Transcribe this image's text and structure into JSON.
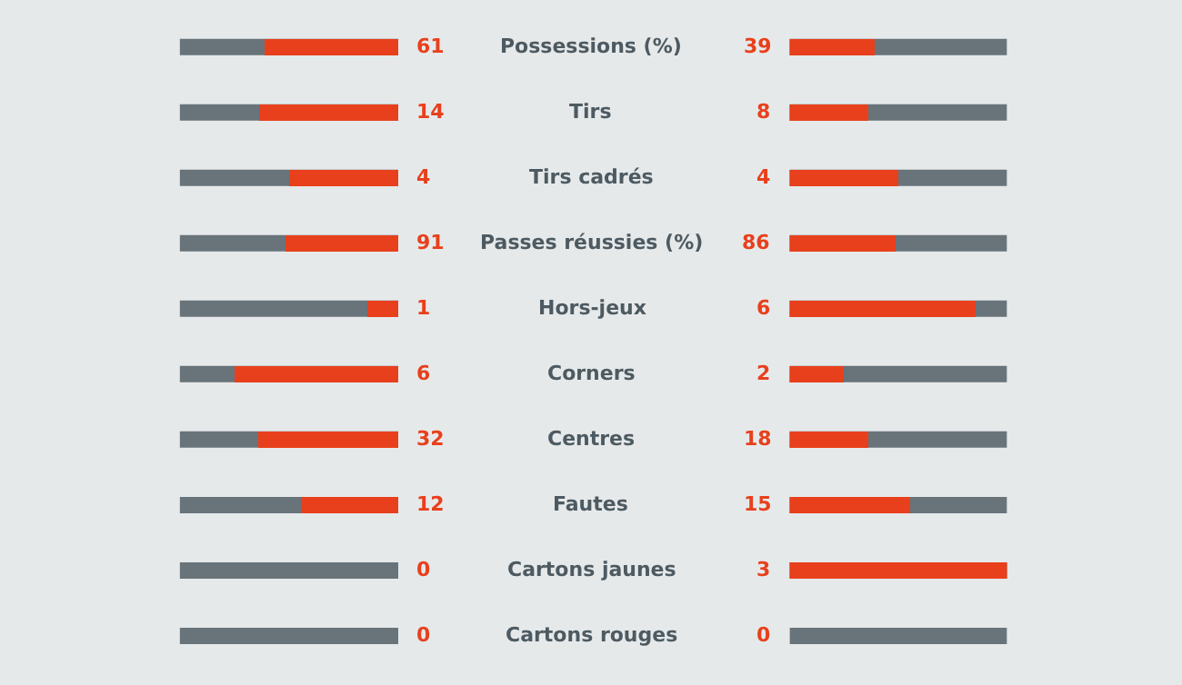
{
  "chart_data": {
    "type": "other",
    "data_labels": true,
    "categories": [
      "Possessions (%)",
      "Tirs",
      "Tirs cadrés",
      "Passes réussies (%)",
      "Hors-jeux",
      "Corners",
      "Centres",
      "Fautes",
      "Cartons jaunes",
      "Cartons rouges"
    ],
    "series": [
      {
        "color": "#e8401c",
        "values": [
          61,
          14,
          4,
          91,
          1,
          6,
          32,
          12,
          0,
          0
        ]
      },
      {
        "color": "#e8401c",
        "values": [
          39,
          8,
          4,
          86,
          6,
          2,
          18,
          15,
          3,
          0
        ]
      }
    ]
  }
}
